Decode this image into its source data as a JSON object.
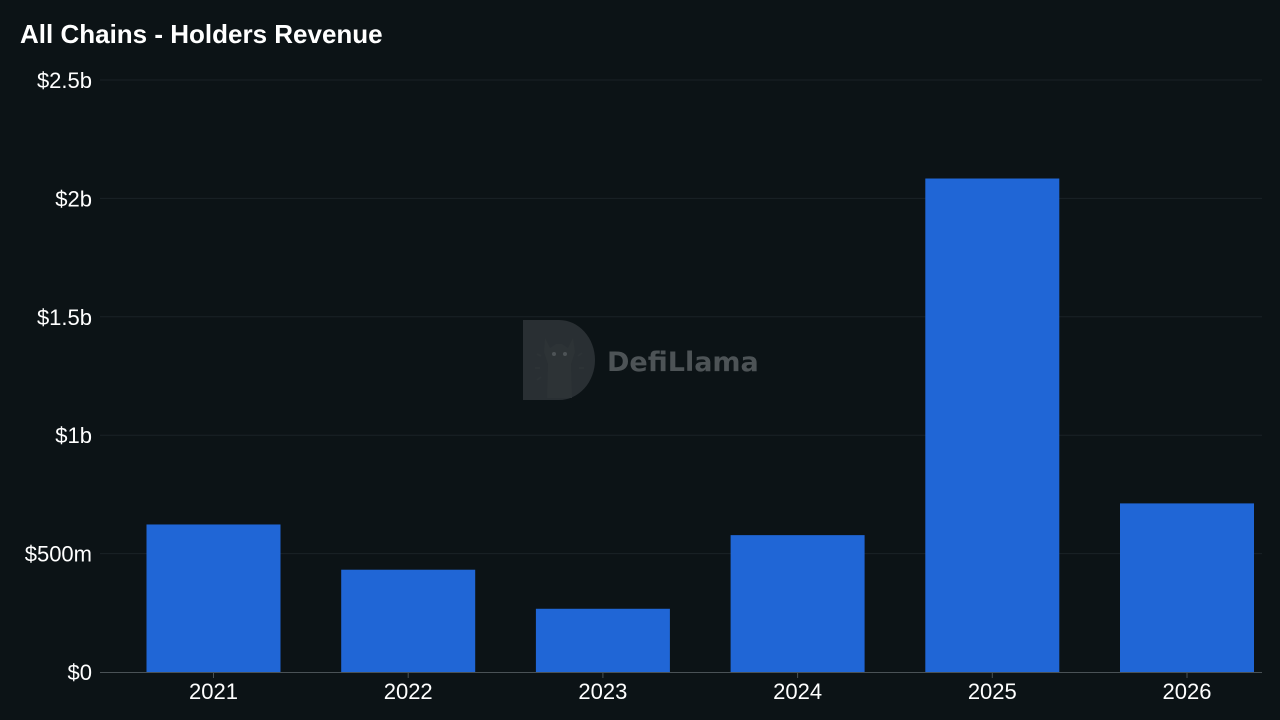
{
  "chart_data": {
    "type": "bar",
    "title": "All Chains - Holders Revenue",
    "categories": [
      "2021",
      "2022",
      "2023",
      "2024",
      "2025",
      "2026"
    ],
    "values": [
      623000000,
      432000000,
      267000000,
      578000000,
      2084000000,
      712000000
    ],
    "ylim": [
      0,
      2500000000
    ],
    "y_ticks": [
      {
        "value": 0,
        "label": "$0"
      },
      {
        "value": 500000000,
        "label": "$500m"
      },
      {
        "value": 1000000000,
        "label": "$1b"
      },
      {
        "value": 1500000000,
        "label": "$1.5b"
      },
      {
        "value": 2000000000,
        "label": "$2b"
      },
      {
        "value": 2500000000,
        "label": "$2.5b"
      }
    ],
    "grid": true,
    "legend": "none",
    "bar_color": "#2066d6",
    "background_color": "#0c1316",
    "watermark": {
      "text": "DefiLlama",
      "icon": "llama-logo-icon"
    }
  }
}
